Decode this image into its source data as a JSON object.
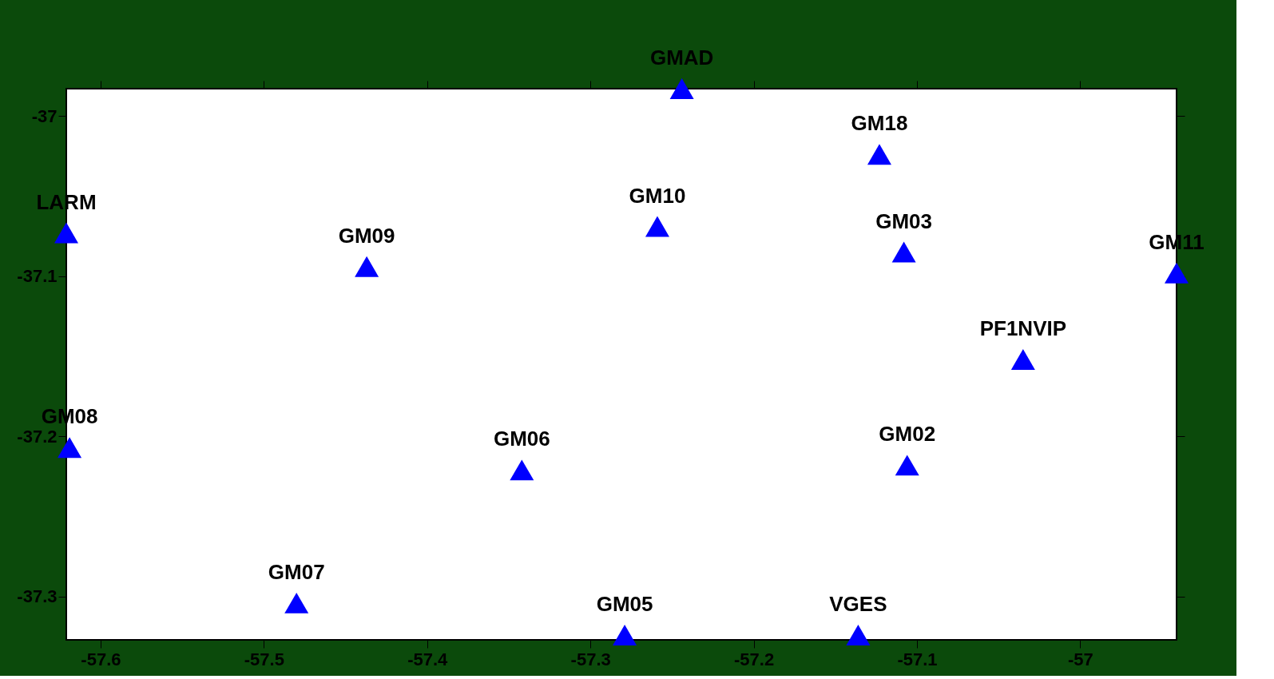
{
  "chart_data": {
    "type": "scatter",
    "marker": "triangle",
    "grid": false,
    "legend": false,
    "xlim": [
      -57.621,
      -56.941
    ],
    "ylim": [
      -37.327,
      -36.983
    ],
    "xticks": [
      -57.6,
      -57.5,
      -57.4,
      -57.3,
      -57.2,
      -57.1,
      -57
    ],
    "yticks": [
      -37,
      -37.1,
      -37.2,
      -37.3
    ],
    "series": [
      {
        "name": "LARM",
        "color": "#0000ff",
        "x": [
          -57.621
        ],
        "values": [
          -37.073
        ]
      },
      {
        "name": "GM09",
        "color": "#0000ff",
        "x": [
          -57.437
        ],
        "values": [
          -37.094
        ]
      },
      {
        "name": "GMAD",
        "color": "#0000ff",
        "x": [
          -57.244
        ],
        "values": [
          -36.983
        ]
      },
      {
        "name": "GM10",
        "color": "#0000ff",
        "x": [
          -57.259
        ],
        "values": [
          -37.069
        ]
      },
      {
        "name": "GM18",
        "color": "#0000ff",
        "x": [
          -57.123
        ],
        "values": [
          -37.024
        ]
      },
      {
        "name": "GM03",
        "color": "#0000ff",
        "x": [
          -57.108
        ],
        "values": [
          -37.085
        ]
      },
      {
        "name": "GM11",
        "color": "#0000ff",
        "x": [
          -56.941
        ],
        "values": [
          -37.098
        ]
      },
      {
        "name": "PF1NVIP",
        "color": "#0000ff",
        "x": [
          -57.035
        ],
        "values": [
          -37.152
        ]
      },
      {
        "name": "GM08",
        "color": "#0000ff",
        "x": [
          -57.619
        ],
        "values": [
          -37.207
        ]
      },
      {
        "name": "GM06",
        "color": "#0000ff",
        "x": [
          -57.342
        ],
        "values": [
          -37.221
        ]
      },
      {
        "name": "GM02",
        "color": "#0000ff",
        "x": [
          -57.106
        ],
        "values": [
          -37.218
        ]
      },
      {
        "name": "GM07",
        "color": "#0000ff",
        "x": [
          -57.48
        ],
        "values": [
          -37.304
        ]
      },
      {
        "name": "GM05",
        "color": "#0000ff",
        "x": [
          -57.279
        ],
        "values": [
          -37.324
        ]
      },
      {
        "name": "VGES",
        "color": "#0000ff",
        "x": [
          -57.136
        ],
        "values": [
          -37.324
        ]
      }
    ]
  }
}
